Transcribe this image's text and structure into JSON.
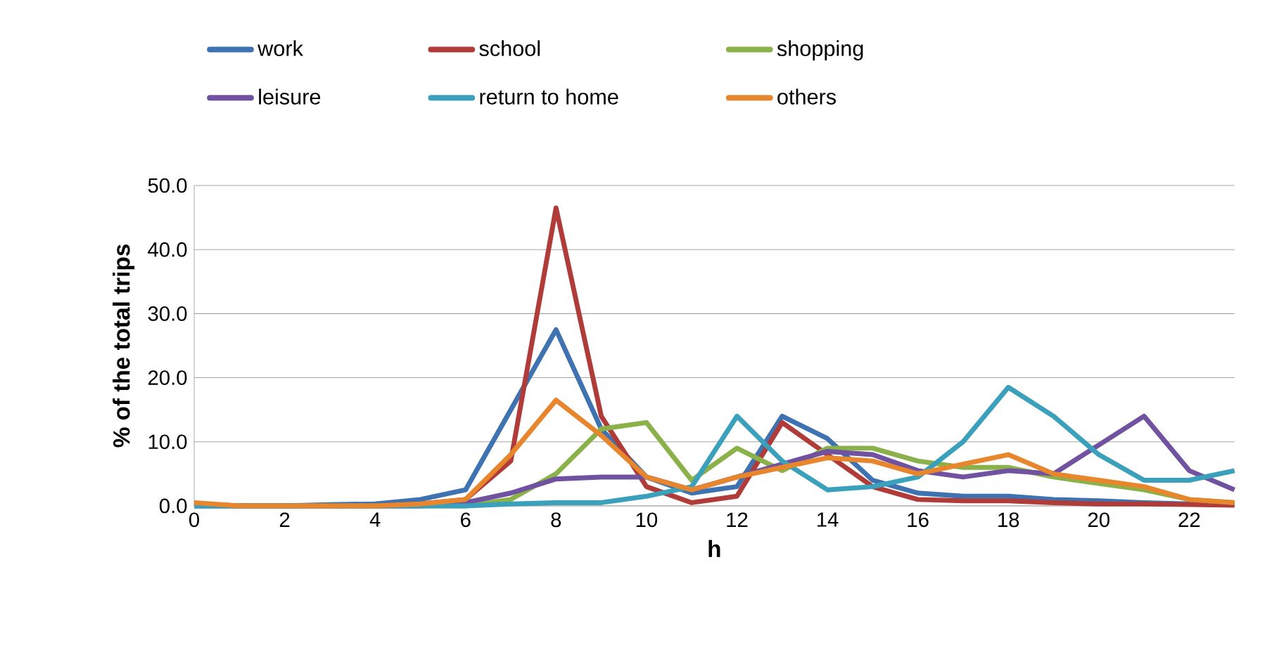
{
  "chart_data": {
    "type": "line",
    "xlabel": "h",
    "ylabel": "% of the total trips",
    "x": [
      0,
      1,
      2,
      3,
      4,
      5,
      6,
      7,
      8,
      9,
      10,
      11,
      12,
      13,
      14,
      15,
      16,
      17,
      18,
      19,
      20,
      21,
      22,
      23
    ],
    "series": [
      {
        "name": "work",
        "color": "#3f72b0",
        "values": [
          0.3,
          0,
          0,
          0.2,
          0.3,
          1,
          2.5,
          15,
          27.5,
          12,
          4.5,
          2,
          3,
          14,
          10.5,
          4,
          2,
          1.5,
          1.5,
          1,
          0.8,
          0.5,
          0.3,
          0.2
        ]
      },
      {
        "name": "school",
        "color": "#b03c3a",
        "values": [
          0.3,
          0,
          0,
          0,
          0,
          0.3,
          1,
          7,
          46.5,
          14,
          3,
          0.5,
          1.5,
          13,
          8,
          3,
          1,
          0.8,
          0.8,
          0.5,
          0.3,
          0.3,
          0.2,
          0.1
        ]
      },
      {
        "name": "shopping",
        "color": "#8bb14a",
        "values": [
          0,
          0,
          0,
          0,
          0,
          0,
          0,
          1,
          5,
          12,
          13,
          4,
          9,
          5.5,
          9,
          9,
          7,
          6,
          6,
          4.5,
          3.5,
          2.5,
          1,
          0.5
        ]
      },
      {
        "name": "leisure",
        "color": "#7052a0",
        "values": [
          0,
          0,
          0,
          0,
          0,
          0,
          0.5,
          2,
          4.2,
          4.5,
          4.5,
          2.5,
          4.5,
          6.5,
          8.5,
          8,
          5.5,
          4.5,
          5.5,
          5,
          9.5,
          14,
          5.5,
          2.5
        ]
      },
      {
        "name": "return to home",
        "color": "#3aa0bb",
        "values": [
          0,
          0,
          0,
          0,
          0,
          0,
          0,
          0.3,
          0.5,
          0.5,
          1.5,
          3,
          14,
          7,
          2.5,
          3,
          4.5,
          10,
          18.5,
          14,
          8,
          4,
          4,
          5.5
        ]
      },
      {
        "name": "others",
        "color": "#e8862e",
        "values": [
          0.5,
          0,
          0,
          0,
          0,
          0.3,
          1,
          8,
          16.5,
          11,
          4.5,
          2.5,
          4.5,
          6,
          7.5,
          7,
          5,
          6.5,
          8,
          5,
          4,
          3,
          1,
          0.5
        ]
      }
    ],
    "xlim": [
      0,
      23
    ],
    "xticks": [
      0,
      2,
      4,
      6,
      8,
      10,
      12,
      14,
      16,
      18,
      20,
      22
    ],
    "ylim": [
      0,
      50
    ],
    "yticks": [
      {
        "value": 0,
        "label": "0.0"
      },
      {
        "value": 10,
        "label": "10.0"
      },
      {
        "value": 20,
        "label": "20.0"
      },
      {
        "value": 30,
        "label": "30.0"
      },
      {
        "value": 40,
        "label": "40.0"
      },
      {
        "value": 50,
        "label": "50.0"
      }
    ],
    "grid": "y",
    "legend": "top",
    "marker": "none",
    "line_style": "solid"
  }
}
